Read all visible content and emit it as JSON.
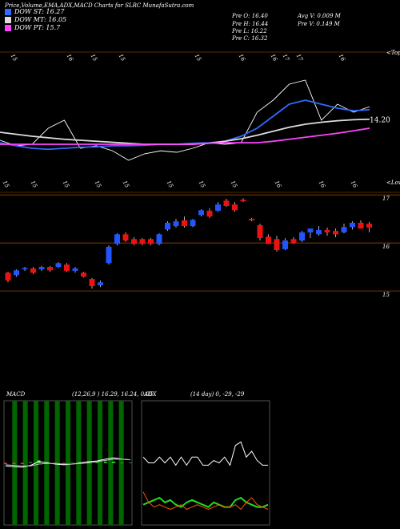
{
  "chart_data": [
    {
      "type": "line",
      "title": "Price,Volume,EMA,ADX,MACD Charts for SLRC MunafaSutra.com",
      "info": [
        "Pre  O: 16.40",
        "Avg V: 0.009 M",
        "Pre  H: 16.44",
        "Pre  V: 0.149 M",
        "Pre  L: 16.22",
        "Pre  C: 16.32"
      ],
      "top_labels": [
        "15",
        "16",
        "15",
        "15",
        "15",
        "16",
        "16",
        "17",
        "17",
        "16"
      ],
      "tops_label": "<Tops",
      "bottom_labels": [
        "15",
        "15",
        "15",
        "15",
        "15",
        "15",
        "15",
        "15",
        "16",
        "16",
        "16"
      ],
      "lows_label": "<Lows",
      "annotation": "14.20",
      "ylim": [
        14.8,
        17.2
      ],
      "series": [
        {
          "color": "#ffffff",
          "values": [
            15.44,
            15.33,
            15.36,
            15.68,
            15.84,
            15.28,
            15.33,
            15.23,
            15.04,
            15.17,
            15.23,
            15.2,
            15.28,
            15.39,
            15.36,
            15.39,
            16.0,
            16.24,
            16.56,
            16.64,
            15.84,
            16.16,
            16.0,
            16.11
          ]
        },
        {
          "name": "DOW ST: 16.27",
          "color": "#2f6bff",
          "values": [
            15.39,
            15.33,
            15.28,
            15.26,
            15.28,
            15.3,
            15.31,
            15.33,
            15.33,
            15.34,
            15.36,
            15.36,
            15.38,
            15.39,
            15.42,
            15.52,
            15.68,
            15.92,
            16.16,
            16.24,
            16.16,
            16.08,
            16.03,
            16.05
          ]
        },
        {
          "name": "DOW MT: 16.05",
          "color": "#dddddd",
          "values": [
            15.6,
            15.56,
            15.52,
            15.49,
            15.46,
            15.44,
            15.42,
            15.4,
            15.38,
            15.36,
            15.36,
            15.36,
            15.36,
            15.38,
            15.42,
            15.47,
            15.54,
            15.62,
            15.7,
            15.76,
            15.8,
            15.83,
            15.85,
            15.86
          ]
        },
        {
          "name": "DOW PT: 15.7",
          "color": "#ff44ff",
          "values": [
            15.36,
            15.36,
            15.36,
            15.36,
            15.36,
            15.36,
            15.36,
            15.36,
            15.36,
            15.36,
            15.36,
            15.36,
            15.36,
            15.38,
            15.39,
            15.39,
            15.39,
            15.42,
            15.46,
            15.5,
            15.54,
            15.58,
            15.63,
            15.68
          ]
        }
      ]
    },
    {
      "type": "candlestick",
      "up_color": "#2255ff",
      "down_color": "#ee1111",
      "ylim": [
        14.05,
        17.72
      ],
      "yticks": [
        15,
        16,
        17
      ],
      "open": [
        15.38,
        15.33,
        15.45,
        15.47,
        15.45,
        15.5,
        15.5,
        15.55,
        15.42,
        15.38,
        15.25,
        15.12,
        15.58,
        15.98,
        16.18,
        16.08,
        16.08,
        16.08,
        15.98,
        16.28,
        16.35,
        16.47,
        16.35,
        16.58,
        16.67,
        16.67,
        16.88,
        16.8,
        16.9,
        16.5,
        16.37,
        16.13,
        16.08,
        15.87,
        16.08,
        16.05,
        16.22,
        16.18,
        16.27,
        16.25,
        16.22,
        16.33,
        16.42,
        16.4
      ],
      "high": [
        15.4,
        15.45,
        15.5,
        15.5,
        15.52,
        15.52,
        15.6,
        15.58,
        15.5,
        15.4,
        15.27,
        15.22,
        15.95,
        16.2,
        16.22,
        16.12,
        16.1,
        16.1,
        16.2,
        16.45,
        16.5,
        16.55,
        16.5,
        16.7,
        16.72,
        16.85,
        16.92,
        16.85,
        16.93,
        16.52,
        16.4,
        16.18,
        16.15,
        16.1,
        16.12,
        16.25,
        16.3,
        16.35,
        16.32,
        16.3,
        16.4,
        16.45,
        16.47,
        16.44
      ],
      "low": [
        15.18,
        15.3,
        15.42,
        15.35,
        15.42,
        15.4,
        15.48,
        15.4,
        15.38,
        15.28,
        15.05,
        15.08,
        15.55,
        15.95,
        16.02,
        15.95,
        15.95,
        15.95,
        15.95,
        16.25,
        16.32,
        16.32,
        16.33,
        16.55,
        16.52,
        16.65,
        16.75,
        16.65,
        16.85,
        16.45,
        16.05,
        15.98,
        15.82,
        15.85,
        15.98,
        16.02,
        16.1,
        16.15,
        16.15,
        16.12,
        16.2,
        16.28,
        16.3,
        16.22
      ],
      "close": [
        15.22,
        15.43,
        15.48,
        15.38,
        15.5,
        15.43,
        15.58,
        15.42,
        15.47,
        15.3,
        15.1,
        15.18,
        15.92,
        16.18,
        16.05,
        15.98,
        15.98,
        15.98,
        16.18,
        16.42,
        16.45,
        16.35,
        16.48,
        16.68,
        16.55,
        16.8,
        16.77,
        16.68,
        16.87,
        16.47,
        16.1,
        15.98,
        15.85,
        16.05,
        16.0,
        16.22,
        16.3,
        16.27,
        16.22,
        16.18,
        16.33,
        16.42,
        16.3,
        16.32
      ]
    },
    {
      "type": "macd",
      "title": "MACD",
      "subtitle": "(12,26,9 ) 16.29, 16.24, 0.05",
      "ylim": [
        -1,
        1
      ],
      "grid_color": "#006600",
      "series": [
        {
          "color": "#ffffff",
          "values": [
            -0.05,
            -0.06,
            -0.07,
            -0.04,
            0.02,
            0.0,
            -0.02,
            -0.03,
            -0.02,
            0.0,
            0.02,
            0.03,
            0.06,
            0.08,
            0.06,
            0.05
          ]
        },
        {
          "color": "#bbbbbb",
          "values": [
            -0.03,
            -0.04,
            -0.05,
            -0.05,
            -0.02,
            -0.01,
            -0.01,
            -0.02,
            -0.02,
            -0.01,
            0.0,
            0.02,
            0.04,
            0.06,
            0.06,
            0.05
          ]
        }
      ],
      "histogram": [
        -0.02,
        -0.02,
        -0.02,
        0.01,
        0.04,
        0.01,
        -0.01,
        -0.01,
        0.0,
        0.01,
        0.02,
        0.01,
        0.02,
        0.02,
        0.0,
        0.0
      ]
    },
    {
      "type": "adx",
      "title": "ADX",
      "subtitle": "(14 day) 0, -29, -29",
      "ylim": [
        0,
        100
      ],
      "series": [
        {
          "color": "#ffffff",
          "values": [
            55,
            50,
            50,
            55,
            50,
            55,
            48,
            55,
            48,
            55,
            55,
            48,
            48,
            52,
            50,
            55,
            48,
            65,
            68,
            55,
            60,
            52,
            48,
            48
          ]
        },
        {
          "color": "#22dd22",
          "values": [
            14,
            16,
            18,
            20,
            16,
            18,
            14,
            12,
            16,
            18,
            16,
            14,
            12,
            16,
            14,
            12,
            12,
            18,
            20,
            16,
            14,
            12,
            12,
            14
          ]
        },
        {
          "color": "#ff5500",
          "values": [
            25,
            16,
            12,
            14,
            12,
            10,
            12,
            14,
            10,
            12,
            14,
            12,
            10,
            12,
            14,
            12,
            12,
            14,
            10,
            16,
            20,
            14,
            12,
            10
          ]
        }
      ]
    }
  ]
}
